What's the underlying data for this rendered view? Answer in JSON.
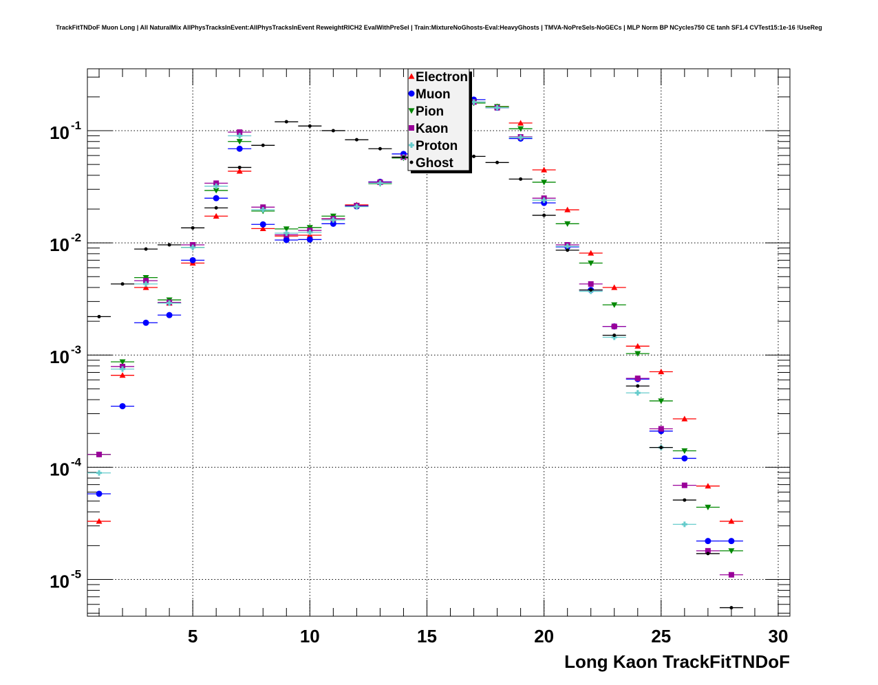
{
  "chart_data": {
    "type": "scatter",
    "title": "TrackFitTNDoF Muon Long | All NaturalMix AllPhysTracksInEvent:AllPhysTracksInEvent ReweightRICH2 EvalWithPreSel | Train:MixtureNoGhosts-Eval:HeavyGhosts | TMVA-NoPreSels-NoGECs | MLP Norm BP NCycles750 CE tanh SF1.4 CVTest15:1e-16 !UseReg",
    "xlabel": "Long Kaon TrackFitTNDoF",
    "ylabel": "",
    "xlim": [
      0.5,
      30.5
    ],
    "ylim": [
      4.7e-06,
      0.356
    ],
    "yscale": "log",
    "grid": true,
    "legend_position": "top-center",
    "x_ticks": [
      5,
      10,
      15,
      20,
      25,
      30
    ],
    "x_tick_labels": [
      "5",
      "10",
      "15",
      "20",
      "25",
      "30"
    ],
    "y_ticks": [
      -1,
      -2,
      -3,
      -4,
      -5
    ],
    "y_tick_base": "10",
    "y_tick_exponents": [
      "-1",
      "-2",
      "-3",
      "-4",
      "-5"
    ],
    "bin_width": 1,
    "series": [
      {
        "name": "Electron",
        "color": "#ff0000",
        "marker": "triangle-up",
        "x": [
          1,
          2,
          3,
          4,
          5,
          6,
          7,
          8,
          9,
          10,
          11,
          12,
          13,
          14,
          15,
          16,
          17,
          18,
          19,
          20,
          21,
          22,
          23,
          24,
          25,
          26,
          27,
          28
        ],
        "values": [
          3.3e-05,
          0.00066,
          0.004,
          0.0029,
          0.0066,
          0.0173,
          0.0435,
          0.0134,
          0.0115,
          0.0117,
          0.0164,
          0.0218,
          0.0347,
          0.058,
          0.1,
          0.15,
          0.18,
          0.164,
          0.117,
          0.0447,
          0.0197,
          0.0081,
          0.004,
          0.0012,
          0.00071,
          0.00027,
          6.8e-05,
          3.3e-05
        ]
      },
      {
        "name": "Muon",
        "color": "#0000ff",
        "marker": "circle",
        "x": [
          1,
          2,
          3,
          4,
          5,
          6,
          7,
          8,
          9,
          10,
          11,
          12,
          13,
          14,
          15,
          16,
          17,
          18,
          19,
          20,
          21,
          22,
          23,
          24,
          25,
          26,
          27,
          28
        ],
        "values": [
          5.8e-05,
          0.00035,
          0.00194,
          0.00227,
          0.007,
          0.025,
          0.069,
          0.0146,
          0.0106,
          0.0107,
          0.0148,
          0.0211,
          0.035,
          0.062,
          0.1,
          0.15,
          0.189,
          0.16,
          0.085,
          0.0227,
          0.0092,
          0.0038,
          0.0018,
          0.00061,
          0.00021,
          0.00012,
          2.2e-05,
          2.2e-05
        ]
      },
      {
        "name": "Pion",
        "color": "#008800",
        "marker": "triangle-down",
        "x": [
          1,
          2,
          3,
          4,
          5,
          6,
          7,
          8,
          9,
          10,
          11,
          12,
          13,
          14,
          15,
          16,
          17,
          18,
          19,
          20,
          21,
          22,
          23,
          24,
          25,
          26,
          27,
          28
        ],
        "values": [
          0.00013,
          0.00087,
          0.0049,
          0.0031,
          0.0091,
          0.0293,
          0.08,
          0.0192,
          0.0133,
          0.0137,
          0.0173,
          0.0215,
          0.0337,
          0.057,
          0.1,
          0.15,
          0.176,
          0.164,
          0.104,
          0.0347,
          0.0148,
          0.0066,
          0.0028,
          0.00103,
          0.00039,
          0.00014,
          4.4e-05,
          1.8e-05
        ]
      },
      {
        "name": "Kaon",
        "color": "#990099",
        "marker": "square",
        "x": [
          1,
          2,
          3,
          4,
          5,
          6,
          7,
          8,
          9,
          10,
          11,
          12,
          13,
          14,
          15,
          16,
          17,
          18,
          19,
          20,
          21,
          22,
          23,
          24,
          25,
          26,
          27,
          28
        ],
        "values": [
          0.00013,
          0.00079,
          0.0046,
          0.00295,
          0.0096,
          0.034,
          0.097,
          0.0208,
          0.0118,
          0.0129,
          0.0164,
          0.0215,
          0.0347,
          0.058,
          0.1,
          0.15,
          0.18,
          0.16,
          0.088,
          0.025,
          0.0096,
          0.0043,
          0.0018,
          0.00062,
          0.00022,
          6.9e-05,
          1.8e-05,
          1.1e-05
        ]
      },
      {
        "name": "Proton",
        "color": "#66cccc",
        "marker": "cross",
        "x": [
          1,
          2,
          3,
          4,
          5,
          6,
          7,
          8,
          9,
          10,
          11,
          12,
          13,
          14,
          15,
          16,
          17,
          18,
          19,
          20,
          21,
          22,
          23,
          24,
          25,
          26
        ],
        "values": [
          8.9e-05,
          0.00075,
          0.0043,
          0.0029,
          0.0091,
          0.032,
          0.09,
          0.0197,
          0.0122,
          0.0124,
          0.016,
          0.021,
          0.034,
          0.058,
          0.1,
          0.15,
          0.18,
          0.16,
          0.087,
          0.024,
          0.0093,
          0.0037,
          0.00144,
          0.00046,
          0.00015,
          3.1e-05
        ]
      },
      {
        "name": "Ghost",
        "color": "#000000",
        "marker": "dot",
        "x": [
          1,
          2,
          3,
          4,
          5,
          6,
          7,
          8,
          9,
          10,
          11,
          12,
          13,
          14,
          15,
          16,
          17,
          18,
          19,
          20,
          21,
          22,
          23,
          24,
          25,
          26,
          27,
          28
        ],
        "values": [
          0.0022,
          0.0043,
          0.0088,
          0.0096,
          0.0136,
          0.0205,
          0.047,
          0.074,
          0.12,
          0.11,
          0.1,
          0.083,
          0.069,
          0.058,
          0.058,
          0.06,
          0.059,
          0.052,
          0.037,
          0.0176,
          0.0086,
          0.0038,
          0.0015,
          0.00053,
          0.00015,
          5.1e-05,
          1.7e-05,
          5.6e-06
        ]
      }
    ]
  }
}
